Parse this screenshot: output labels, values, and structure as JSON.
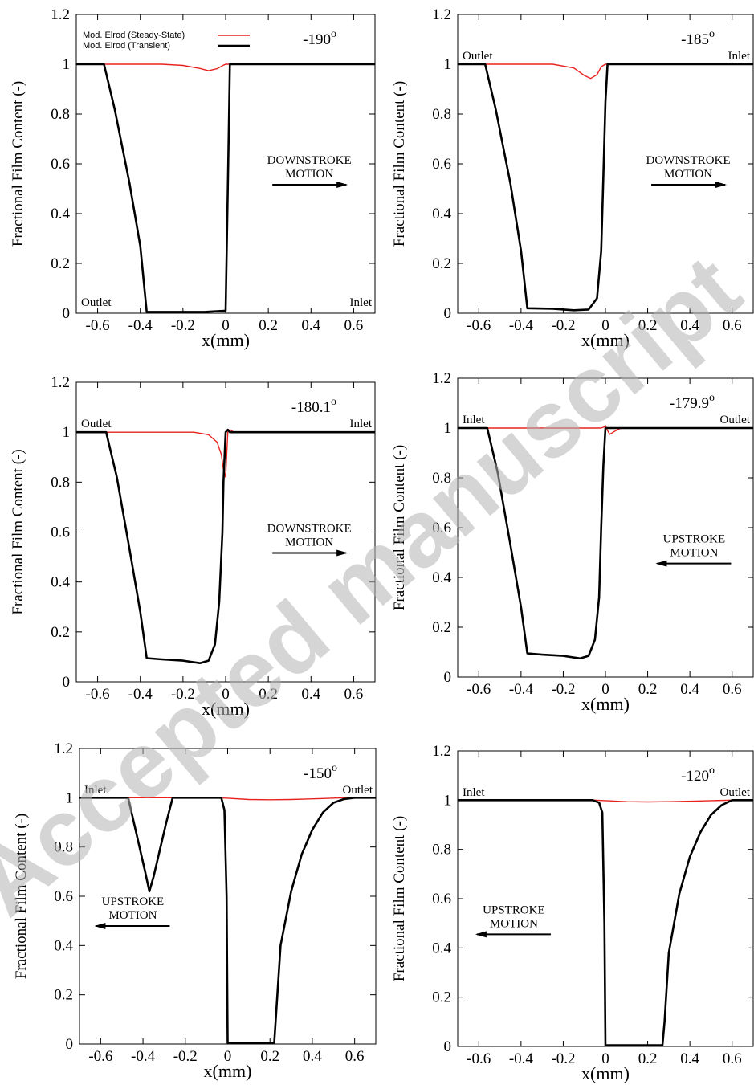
{
  "watermark": "Accepted manuscript",
  "legend": {
    "steady_label": "Mod. Elrod (Steady-State)",
    "transient_label": "Mod. Elrod (Transient)"
  },
  "colors": {
    "steady_state": "#e8231f",
    "transient": "#000000"
  },
  "chart_data": [
    {
      "type": "line",
      "angle": "-190",
      "angle_sup": "o",
      "xlabel": "x(mm)",
      "ylabel": "Fractional Film Content (-)",
      "xlim": [
        -0.7,
        0.7
      ],
      "ylim": [
        0,
        1.2
      ],
      "xticks": [
        "-0.6",
        "-0.4",
        "-0.2",
        "0",
        "0.2",
        "0.4",
        "0.6"
      ],
      "yticks": [
        "0",
        "0.2",
        "0.4",
        "0.6",
        "0.8",
        "1",
        "1.2"
      ],
      "legend": true,
      "left_end_label": "Outlet",
      "right_end_label": "Inlet",
      "end_labels_position": "bottom",
      "motion_label": [
        "DOWNSTROKE",
        "MOTION"
      ],
      "motion_direction": "right",
      "series": [
        {
          "name": "Mod. Elrod (Steady-State)",
          "color": "#e8231f",
          "x": [
            -0.7,
            -0.3,
            -0.2,
            -0.12,
            -0.08,
            -0.04,
            -0.01,
            0.0,
            0.7
          ],
          "y": [
            1,
            1,
            0.995,
            0.983,
            0.974,
            0.982,
            0.996,
            1,
            1
          ]
        },
        {
          "name": "Mod. Elrod (Transient)",
          "color": "#000000",
          "x": [
            -0.7,
            -0.57,
            -0.52,
            -0.45,
            -0.4,
            -0.37,
            -0.3,
            -0.1,
            0.0,
            0.01,
            0.02,
            0.7
          ],
          "y": [
            1,
            1,
            0.82,
            0.52,
            0.27,
            0.005,
            0.005,
            0.005,
            0.01,
            0.5,
            1,
            1
          ]
        }
      ]
    },
    {
      "type": "line",
      "angle": "-185",
      "angle_sup": "o",
      "xlabel": "x(mm)",
      "ylabel": "Fractional Film Content (-)",
      "xlim": [
        -0.7,
        0.7
      ],
      "ylim": [
        0,
        1.2
      ],
      "xticks": [
        "-0.6",
        "-0.4",
        "-0.2",
        "0",
        "0.2",
        "0.4",
        "0.6"
      ],
      "yticks": [
        "0",
        "0.2",
        "0.4",
        "0.6",
        "0.8",
        "1",
        "1.2"
      ],
      "legend": false,
      "left_end_label": "Outlet",
      "right_end_label": "Inlet",
      "end_labels_position": "top",
      "motion_label": [
        "DOWNSTROKE",
        "MOTION"
      ],
      "motion_direction": "right",
      "series": [
        {
          "name": "Mod. Elrod (Steady-State)",
          "color": "#e8231f",
          "x": [
            -0.7,
            -0.25,
            -0.15,
            -0.1,
            -0.07,
            -0.04,
            -0.02,
            0.0,
            0.7
          ],
          "y": [
            1,
            1,
            0.985,
            0.955,
            0.943,
            0.958,
            0.99,
            1,
            1
          ]
        },
        {
          "name": "Mod. Elrod (Transient)",
          "color": "#000000",
          "x": [
            -0.7,
            -0.57,
            -0.52,
            -0.45,
            -0.4,
            -0.37,
            -0.25,
            -0.15,
            -0.08,
            -0.04,
            -0.02,
            -0.01,
            0.0,
            0.01,
            0.7
          ],
          "y": [
            1,
            1,
            0.82,
            0.52,
            0.25,
            0.02,
            0.018,
            0.012,
            0.015,
            0.06,
            0.25,
            0.55,
            0.85,
            1,
            1
          ]
        }
      ]
    },
    {
      "type": "line",
      "angle": "-180.1",
      "angle_sup": "o",
      "xlabel": "x(mm)",
      "ylabel": "Fractional Film Content (-)",
      "xlim": [
        -0.7,
        0.7
      ],
      "ylim": [
        0,
        1.2
      ],
      "xticks": [
        "-0.6",
        "-0.4",
        "-0.2",
        "0",
        "0.2",
        "0.4",
        "0.6"
      ],
      "yticks": [
        "0",
        "0.2",
        "0.4",
        "0.6",
        "0.8",
        "1",
        "1.2"
      ],
      "legend": false,
      "left_end_label": "Outlet",
      "right_end_label": "Inlet",
      "end_labels_position": "top",
      "motion_label": [
        "DOWNSTROKE",
        "MOTION"
      ],
      "motion_direction": "right",
      "series": [
        {
          "name": "Mod. Elrod (Steady-State)",
          "color": "#e8231f",
          "x": [
            -0.7,
            -0.15,
            -0.08,
            -0.04,
            -0.02,
            -0.01,
            0.0,
            0.01,
            0.02,
            0.04,
            0.7
          ],
          "y": [
            1,
            1,
            0.99,
            0.96,
            0.91,
            0.85,
            0.82,
            1.0,
            1.01,
            1.0,
            1
          ]
        },
        {
          "name": "Mod. Elrod (Transient)",
          "color": "#000000",
          "x": [
            -0.7,
            -0.56,
            -0.51,
            -0.45,
            -0.4,
            -0.37,
            -0.3,
            -0.2,
            -0.12,
            -0.08,
            -0.05,
            -0.03,
            -0.015,
            -0.01,
            0.0,
            0.01,
            0.02,
            0.7
          ],
          "y": [
            1,
            1,
            0.82,
            0.53,
            0.28,
            0.095,
            0.09,
            0.085,
            0.075,
            0.085,
            0.15,
            0.32,
            0.6,
            0.8,
            1.0,
            1.01,
            1.0,
            1
          ]
        }
      ]
    },
    {
      "type": "line",
      "angle": "-179.9",
      "angle_sup": "o",
      "xlabel": "x(mm)",
      "ylabel": "Fractional Film Content (-)",
      "xlim": [
        -0.7,
        0.7
      ],
      "ylim": [
        0,
        1.2
      ],
      "xticks": [
        "-0.6",
        "-0.4",
        "-0.2",
        "0",
        "0.2",
        "0.4",
        "0.6"
      ],
      "yticks": [
        "0",
        "0.2",
        "0.4",
        "0.6",
        "0.8",
        "1",
        "1.2"
      ],
      "legend": false,
      "left_end_label": "Inlet",
      "right_end_label": "Outlet",
      "end_labels_position": "top",
      "motion_label": [
        "UPSTROKE",
        "MOTION"
      ],
      "motion_direction": "left",
      "series": [
        {
          "name": "Mod. Elrod (Steady-State)",
          "color": "#e8231f",
          "x": [
            -0.7,
            -0.02,
            -0.005,
            0.0,
            0.01,
            0.02,
            0.04,
            0.06,
            0.08,
            0.7
          ],
          "y": [
            1,
            1,
            1.005,
            1.01,
            0.99,
            0.975,
            0.985,
            0.995,
            1,
            1
          ]
        },
        {
          "name": "Mod. Elrod (Transient)",
          "color": "#000000",
          "x": [
            -0.7,
            -0.56,
            -0.51,
            -0.45,
            -0.4,
            -0.37,
            -0.3,
            -0.2,
            -0.12,
            -0.08,
            -0.05,
            -0.03,
            -0.02,
            -0.01,
            0.0,
            0.01,
            0.7
          ],
          "y": [
            1,
            1,
            0.82,
            0.53,
            0.28,
            0.095,
            0.09,
            0.085,
            0.075,
            0.085,
            0.15,
            0.32,
            0.6,
            0.85,
            1.0,
            1.0,
            1
          ]
        }
      ]
    },
    {
      "type": "line",
      "angle": "-150",
      "angle_sup": "o",
      "xlabel": "x(mm)",
      "ylabel": "Fractional Film Content (-)",
      "xlim": [
        -0.7,
        0.7
      ],
      "ylim": [
        0,
        1.2
      ],
      "xticks": [
        "-0.6",
        "-0.4",
        "-0.2",
        "0",
        "0.2",
        "0.4",
        "0.6"
      ],
      "yticks": [
        "0",
        "0.2",
        "0.4",
        "0.6",
        "0.8",
        "1",
        "1.2"
      ],
      "legend": false,
      "left_end_label": "Inlet",
      "right_end_label": "Outlet",
      "end_labels_position": "top",
      "motion_label": [
        "UPSTROKE",
        "MOTION"
      ],
      "motion_direction": "left",
      "series": [
        {
          "name": "Mod. Elrod (Steady-State)",
          "color": "#e8231f",
          "x": [
            -0.7,
            -0.05,
            0.0,
            0.1,
            0.2,
            0.3,
            0.45,
            0.55,
            0.7
          ],
          "y": [
            1,
            1,
            0.998,
            0.993,
            0.992,
            0.993,
            0.997,
            1,
            1
          ]
        },
        {
          "name": "Mod. Elrod (Transient)",
          "color": "#000000",
          "x": [
            -0.7,
            -0.47,
            -0.43,
            -0.39,
            -0.37,
            -0.35,
            -0.32,
            -0.29,
            -0.26,
            -0.1,
            -0.03,
            -0.015,
            -0.005,
            0.0,
            0.1,
            0.2,
            0.22,
            0.25,
            0.3,
            0.35,
            0.4,
            0.45,
            0.5,
            0.55,
            0.6,
            0.7
          ],
          "y": [
            1,
            1,
            0.85,
            0.7,
            0.62,
            0.68,
            0.79,
            0.9,
            1.0,
            1.0,
            1.0,
            0.95,
            0.6,
            0.005,
            0.005,
            0.005,
            0.005,
            0.4,
            0.62,
            0.77,
            0.87,
            0.94,
            0.98,
            0.995,
            1,
            1
          ]
        }
      ]
    },
    {
      "type": "line",
      "angle": "-120",
      "angle_sup": "o",
      "xlabel": "x(mm)",
      "ylabel": "Fractional Film Content (-)",
      "xlim": [
        -0.7,
        0.7
      ],
      "ylim": [
        0,
        1.2
      ],
      "xticks": [
        "-0.6",
        "-0.4",
        "-0.2",
        "0",
        "0.2",
        "0.4",
        "0.6"
      ],
      "yticks": [
        "0",
        "0.2",
        "0.4",
        "0.6",
        "0.8",
        "1",
        "1.2"
      ],
      "legend": false,
      "left_end_label": "Inlet",
      "right_end_label": "Outlet",
      "end_labels_position": "top",
      "motion_label": [
        "UPSTROKE",
        "MOTION"
      ],
      "motion_direction": "left",
      "series": [
        {
          "name": "Mod. Elrod (Steady-State)",
          "color": "#e8231f",
          "x": [
            -0.7,
            -0.05,
            0.0,
            0.1,
            0.2,
            0.3,
            0.45,
            0.6,
            0.7
          ],
          "y": [
            1,
            1,
            0.998,
            0.994,
            0.993,
            0.994,
            0.997,
            1,
            1
          ]
        },
        {
          "name": "Mod. Elrod (Transient)",
          "color": "#000000",
          "x": [
            -0.7,
            -0.06,
            -0.03,
            -0.015,
            -0.005,
            0.0,
            0.1,
            0.2,
            0.27,
            0.28,
            0.3,
            0.35,
            0.4,
            0.45,
            0.5,
            0.55,
            0.6,
            0.7
          ],
          "y": [
            1,
            1,
            0.99,
            0.95,
            0.5,
            0.005,
            0.005,
            0.005,
            0.005,
            0.1,
            0.38,
            0.62,
            0.77,
            0.87,
            0.94,
            0.98,
            1,
            1
          ]
        }
      ]
    }
  ]
}
